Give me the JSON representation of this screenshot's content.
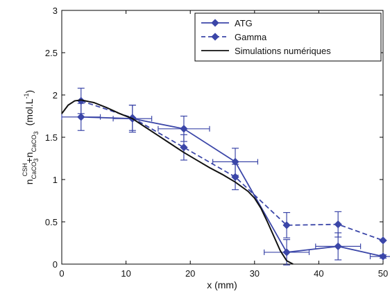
{
  "chart_data": {
    "type": "line",
    "xlabel": "x (mm)",
    "ylabel": {
      "n": "n",
      "sub1": "CaCO",
      "sub1b": "3",
      "sup": "CSH",
      "plus": "+n",
      "sub2": "CaCO",
      "sub2b": "3",
      "unit_open": "(mol.L",
      "unit_exp": "-1",
      "unit_close": ")"
    },
    "xlim": [
      0,
      50
    ],
    "ylim": [
      0,
      3
    ],
    "xticks": [
      "0",
      "10",
      "20",
      "30",
      "40",
      "50"
    ],
    "yticks": [
      "0",
      "0.5",
      "1",
      "1.5",
      "2",
      "2.5",
      "3"
    ],
    "legend_position": "top-right",
    "series": [
      {
        "name": "ATG",
        "style": "solid-markers",
        "color": "#3b46a8",
        "points": [
          {
            "x": 3,
            "y": 1.74,
            "ey": 0.16,
            "ex": 3
          },
          {
            "x": 11,
            "y": 1.72,
            "ey": 0.16,
            "ex": 3
          },
          {
            "x": 19,
            "y": 1.6,
            "ey": 0.15,
            "ex": 4
          },
          {
            "x": 27,
            "y": 1.21,
            "ey": 0.16,
            "ex": 3.5
          },
          {
            "x": 35,
            "y": 0.14,
            "ey": 0.15,
            "ex": 3.5
          },
          {
            "x": 43,
            "y": 0.21,
            "ey": 0.16,
            "ex": 3.5
          },
          {
            "x": 50,
            "y": 0.09,
            "ey": 0.02,
            "ex": 2
          }
        ]
      },
      {
        "name": "Gamma",
        "style": "dashed-markers",
        "color": "#3b46a8",
        "points": [
          {
            "x": 3,
            "y": 1.93,
            "ey": 0.15,
            "ex": 0
          },
          {
            "x": 11,
            "y": 1.73,
            "ey": 0.15,
            "ex": 0
          },
          {
            "x": 19,
            "y": 1.38,
            "ey": 0.15,
            "ex": 0
          },
          {
            "x": 27,
            "y": 1.03,
            "ey": 0.15,
            "ex": 0
          },
          {
            "x": 35,
            "y": 0.46,
            "ey": 0.15,
            "ex": 0
          },
          {
            "x": 43,
            "y": 0.47,
            "ey": 0.15,
            "ex": 0
          },
          {
            "x": 50,
            "y": 0.28,
            "ey": 0,
            "ex": 0
          }
        ]
      },
      {
        "name": "Simulations numériques",
        "style": "solid",
        "color": "#111111",
        "points": [
          {
            "x": 0,
            "y": 1.78
          },
          {
            "x": 1,
            "y": 1.88
          },
          {
            "x": 2,
            "y": 1.93
          },
          {
            "x": 3,
            "y": 1.94
          },
          {
            "x": 5,
            "y": 1.91
          },
          {
            "x": 7,
            "y": 1.85
          },
          {
            "x": 9,
            "y": 1.78
          },
          {
            "x": 11,
            "y": 1.72
          },
          {
            "x": 13,
            "y": 1.62
          },
          {
            "x": 15,
            "y": 1.52
          },
          {
            "x": 17,
            "y": 1.42
          },
          {
            "x": 19,
            "y": 1.32
          },
          {
            "x": 21,
            "y": 1.23
          },
          {
            "x": 23,
            "y": 1.14
          },
          {
            "x": 25,
            "y": 1.06
          },
          {
            "x": 27,
            "y": 0.97
          },
          {
            "x": 29,
            "y": 0.86
          },
          {
            "x": 30,
            "y": 0.78
          },
          {
            "x": 31,
            "y": 0.66
          },
          {
            "x": 32,
            "y": 0.5
          },
          {
            "x": 33,
            "y": 0.33
          },
          {
            "x": 34,
            "y": 0.16
          },
          {
            "x": 35,
            "y": 0.04
          },
          {
            "x": 36,
            "y": 0
          }
        ]
      }
    ]
  }
}
